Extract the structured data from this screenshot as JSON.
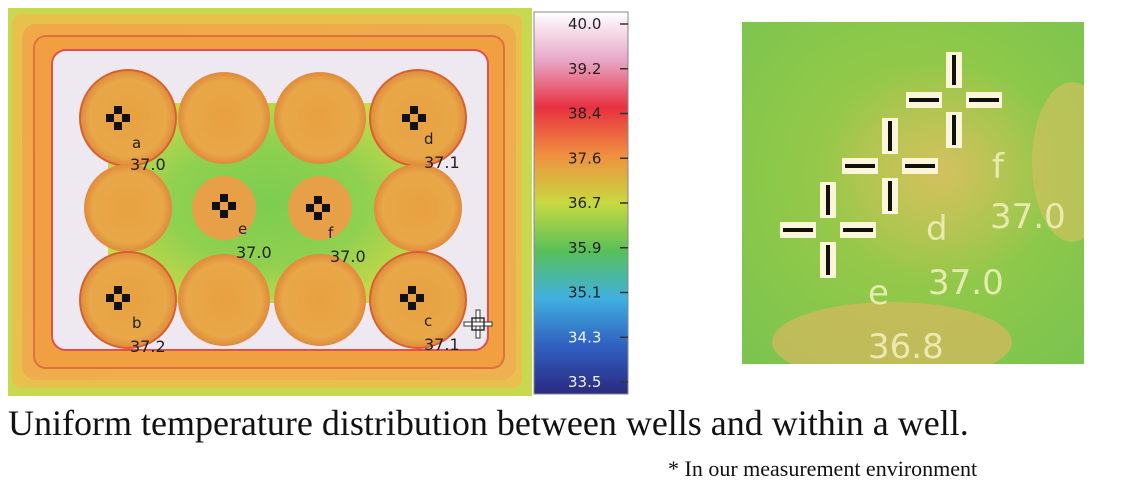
{
  "thermal_image": {
    "wells": [
      {
        "label": "a",
        "temp": "37.0"
      },
      {
        "label": "b",
        "temp": "37.2"
      },
      {
        "label": "c",
        "temp": "37.1"
      },
      {
        "label": "d",
        "temp": "37.1"
      },
      {
        "label": "e",
        "temp": "37.0"
      },
      {
        "label": "f",
        "temp": "37.0"
      }
    ]
  },
  "color_scale": {
    "ticks": [
      "40.0",
      "39.2",
      "38.4",
      "37.6",
      "36.7",
      "35.9",
      "35.1",
      "34.3",
      "33.5"
    ],
    "colors": [
      "#ffffff",
      "#e8a8c8",
      "#e83040",
      "#f09040",
      "#c8d840",
      "#58c058",
      "#40b0e0",
      "#3060c0",
      "#2a2a80"
    ]
  },
  "closeup": {
    "labels": [
      {
        "label": "f",
        "temp": "37.0"
      },
      {
        "label": "d",
        "temp": "37.0"
      },
      {
        "label": "e",
        "temp": "36.8"
      }
    ]
  },
  "caption": "Uniform temperature distribution between wells and within a well.",
  "note": "* In our measurement environment"
}
